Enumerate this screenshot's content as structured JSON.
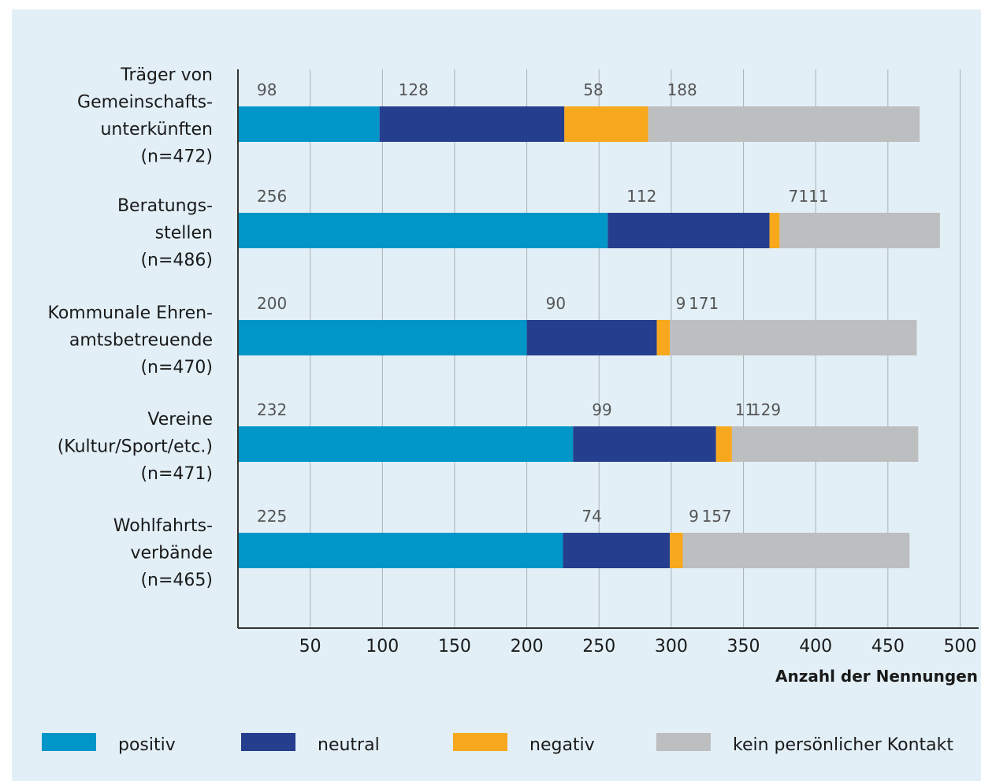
{
  "chart_data": {
    "type": "bar",
    "orientation": "horizontal",
    "stacked": true,
    "categories": [
      [
        "Träger von",
        "Gemeinschafts-",
        "unterkünften",
        "(n=472)"
      ],
      [
        "Beratungs-",
        "stellen",
        "(n=486)"
      ],
      [
        "Kommunale Ehren-",
        "amtsbetreuende",
        "(n=470)"
      ],
      [
        "Vereine",
        "(Kultur/Sport/etc.)",
        "(n=471)"
      ],
      [
        "Wohlfahrts-",
        "verbände",
        "(n=465)"
      ]
    ],
    "series": [
      {
        "name": "positiv",
        "color": "#0096c8",
        "values": [
          98,
          256,
          200,
          232,
          225
        ]
      },
      {
        "name": "neutral",
        "color": "#253f8e",
        "values": [
          128,
          112,
          90,
          99,
          74
        ]
      },
      {
        "name": "negativ",
        "color": "#f8a81c",
        "values": [
          58,
          7,
          9,
          11,
          9
        ]
      },
      {
        "name": "kein persönlicher Kontakt",
        "color": "#bdbec0",
        "values": [
          188,
          111,
          171,
          129,
          157
        ]
      }
    ],
    "x_ticks": [
      50,
      100,
      150,
      200,
      250,
      300,
      350,
      400,
      450,
      500
    ],
    "xlim": [
      0,
      500
    ],
    "xlabel": "Anzahl der Nennungen",
    "ylabel": "",
    "title": "",
    "grid": "vertical",
    "legend": "bottom"
  }
}
